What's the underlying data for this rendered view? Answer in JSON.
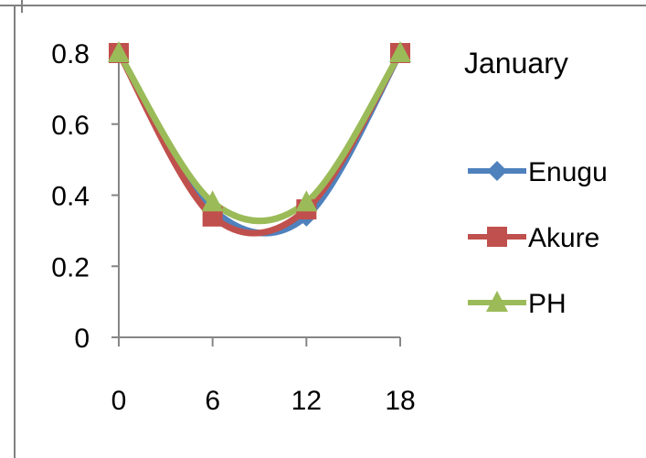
{
  "chart_data": {
    "type": "line",
    "title": "January",
    "x": [
      0,
      6,
      12,
      18
    ],
    "x_ticks": [
      "0",
      "6",
      "12",
      "18"
    ],
    "y_ticks": [
      "0",
      "0.2",
      "0.4",
      "0.6",
      "0.8"
    ],
    "ylim": [
      0,
      0.8
    ],
    "xlim": [
      0,
      18
    ],
    "legend_position": "right",
    "series": [
      {
        "name": "Enugu",
        "values": [
          0.8,
          0.36,
          0.34,
          0.8
        ],
        "color": "#4F81BD",
        "marker": "diamond"
      },
      {
        "name": "Akure",
        "values": [
          0.8,
          0.34,
          0.36,
          0.8
        ],
        "color": "#C0504D",
        "marker": "square"
      },
      {
        "name": "PH",
        "values": [
          0.8,
          0.38,
          0.38,
          0.8
        ],
        "color": "#9BBB59",
        "marker": "triangle"
      }
    ]
  }
}
